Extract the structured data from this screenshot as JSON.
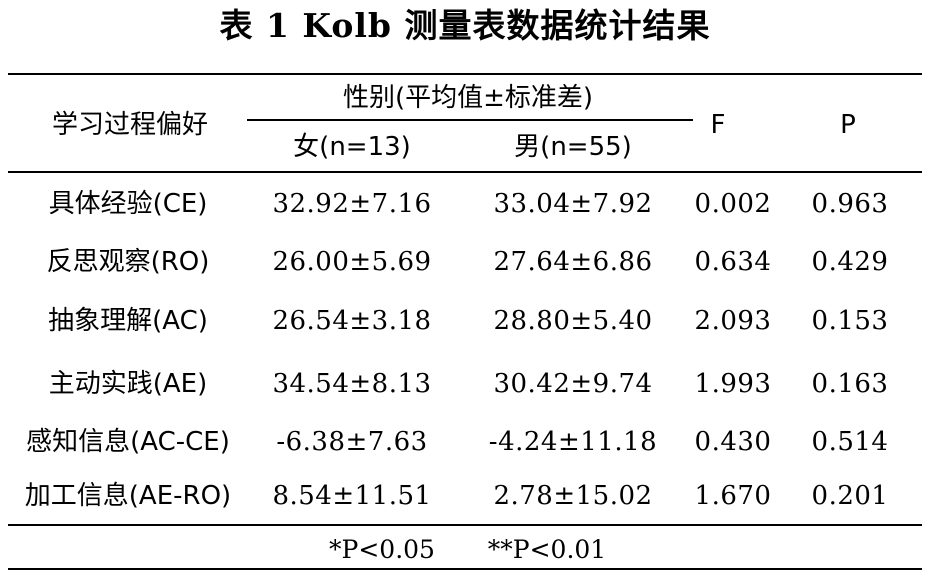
{
  "title": "表 1 Kolb 测量表数据统计结果",
  "header": {
    "col_pref": "学习过程偏好",
    "col_gender": "性别(平均值±标准差)",
    "col_female": "女(n=13)",
    "col_male": "男(n=55)",
    "col_f": "F",
    "col_p": "P"
  },
  "rows": [
    {
      "label": "具体经验(CE)",
      "female": "32.92±7.16",
      "male": "33.04±7.92",
      "f": "0.002",
      "p": "0.963"
    },
    {
      "label": "反思观察(RO)",
      "female": "26.00±5.69",
      "male": "27.64±6.86",
      "f": "0.634",
      "p": "0.429"
    },
    {
      "label": "抽象理解(AC)",
      "female": "26.54±3.18",
      "male": "28.80±5.40",
      "f": "2.093",
      "p": "0.153"
    },
    {
      "label": "主动实践(AE)",
      "female": "34.54±8.13",
      "male": "30.42±9.74",
      "f": "1.993",
      "p": "0.163"
    },
    {
      "label": "感知信息(AC-CE)",
      "female": "-6.38±7.63",
      "male": "-4.24±11.18",
      "f": "0.430",
      "p": "0.514"
    },
    {
      "label": "加工信息(AE-RO)",
      "female": "8.54±11.51",
      "male": "2.78±15.02",
      "f": "1.670",
      "p": "0.201"
    }
  ],
  "footnote": {
    "sig1": "*P<0.05",
    "sig2": "**P<0.01"
  }
}
